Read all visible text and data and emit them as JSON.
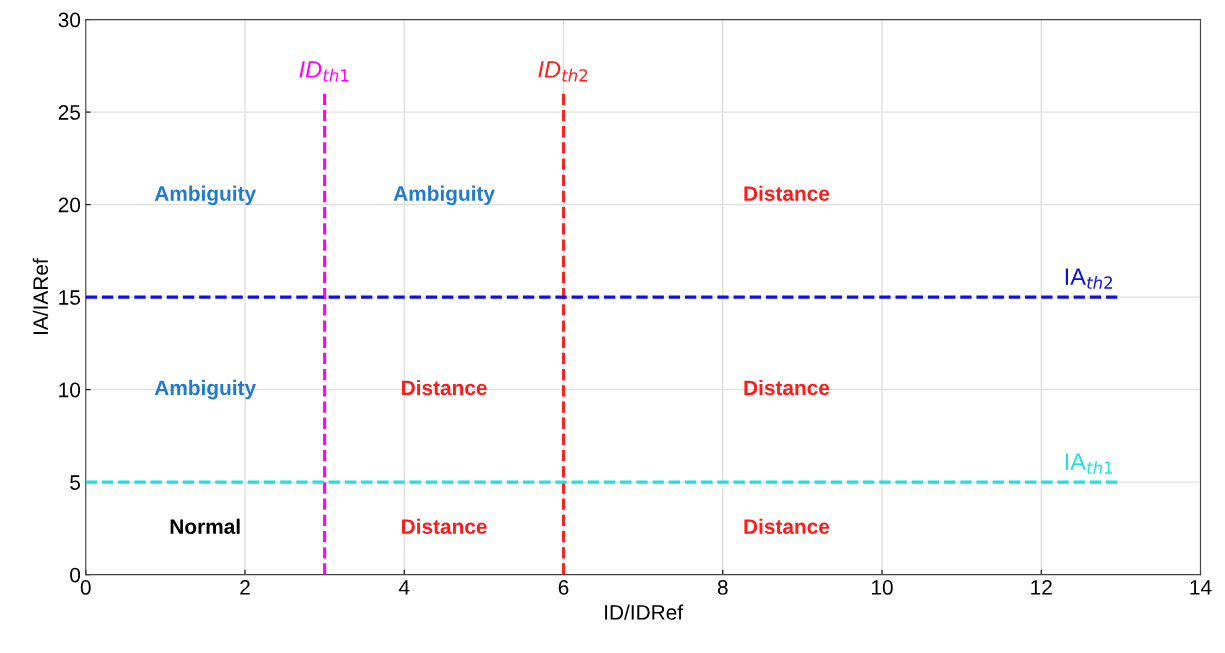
{
  "chart_data": {
    "type": "line",
    "xlabel": "ID/IDRef",
    "ylabel": "IA/IARef",
    "xlim": [
      0,
      14
    ],
    "xticks": [
      0,
      2,
      4,
      6,
      8,
      10,
      12,
      14
    ],
    "ylim": [
      0,
      30
    ],
    "yticks": [
      0,
      5,
      10,
      15,
      20,
      25,
      30
    ],
    "grid": true,
    "legend": false,
    "line_style": "dashed",
    "marker": "none",
    "series": [
      {
        "name": "ID$_{th1}$",
        "color": "#ff00ff",
        "x": [
          3,
          3
        ],
        "values": [
          0,
          26
        ]
      },
      {
        "name": "ID$_{th2}$",
        "color": "#ff2020",
        "x": [
          6,
          6
        ],
        "values": [
          0,
          26
        ]
      },
      {
        "name": "IA$_{th2}$",
        "color": "#1010e0",
        "x": [
          0,
          13
        ],
        "values": [
          15,
          15
        ]
      },
      {
        "name": "IA$_{th1}$",
        "color": "#20e0e0",
        "x": [
          0,
          13
        ],
        "values": [
          5,
          5
        ]
      }
    ],
    "annotations": [
      "Ambiguity",
      "Ambiguity",
      "Distance",
      "Ambiguity",
      "Distance",
      "Distance",
      "Normal",
      "Distance",
      "Distance"
    ]
  }
}
